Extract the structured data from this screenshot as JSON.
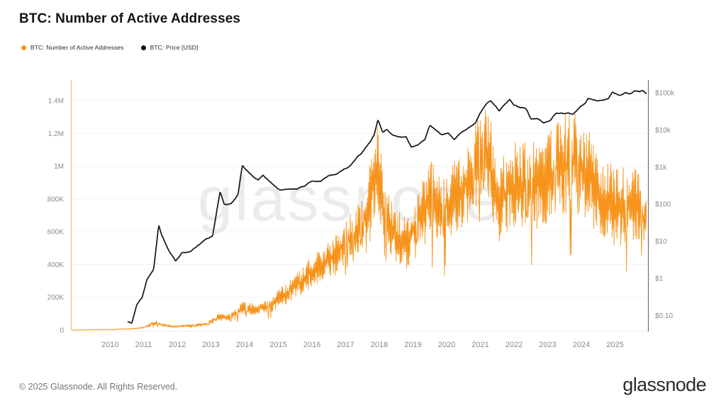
{
  "title": "BTC: Number of Active Addresses",
  "watermark": "glassnode",
  "legend": {
    "items": [
      {
        "label": "BTC: Number of Active Addresses",
        "color": "#f7931a"
      },
      {
        "label": "BTC: Price [USD]",
        "color": "#111111"
      }
    ]
  },
  "footer": {
    "copyright": "© 2025 Glassnode. All Rights Reserved.",
    "logo": "glassnode"
  },
  "colors": {
    "accent_orange": "#f7931a",
    "price_black": "#151515",
    "grid": "#f3f3f3",
    "axis_left_line": "rgba(247,147,26,0.55)",
    "axis_right_line": "#6f6f6f",
    "tick_text": "#8a8a8a",
    "baseline": "#ececec"
  },
  "chart_data": {
    "type": "line",
    "title": "BTC: Number of Active Addresses",
    "grid": "horizontal",
    "legend_position": "top-left",
    "x_axis": {
      "tick_years": [
        2010,
        2011,
        2012,
        2013,
        2014,
        2015,
        2016,
        2017,
        2018,
        2019,
        2020,
        2021,
        2022,
        2023,
        2024,
        2025
      ],
      "range_years": [
        2008.85,
        2025.95
      ]
    },
    "left_axis": {
      "scale": "linear",
      "tick_labels": [
        "0",
        "200K",
        "400K",
        "600K",
        "800K",
        "1M",
        "1.2M",
        "1.4M"
      ],
      "tick_values": [
        0,
        200000,
        400000,
        600000,
        800000,
        1000000,
        1200000,
        1400000
      ],
      "ylim": [
        0,
        1525000
      ]
    },
    "right_axis": {
      "scale": "log",
      "tick_labels": [
        "$0.10",
        "$1",
        "$10",
        "$100",
        "$1k",
        "$10k",
        "$100k"
      ],
      "tick_values": [
        0.1,
        1,
        10,
        100,
        1000,
        10000,
        100000
      ],
      "ylim": [
        0.043,
        220000
      ]
    },
    "series": [
      {
        "name": "BTC: Number of Active Addresses",
        "color": "#f7931a",
        "axis": "left",
        "style": "noisy-band",
        "anchors": [
          [
            2008.85,
            500,
            0.2
          ],
          [
            2010.0,
            3000,
            0.4
          ],
          [
            2010.6,
            8000,
            0.4
          ],
          [
            2011.0,
            15000,
            0.35
          ],
          [
            2011.35,
            45000,
            0.3
          ],
          [
            2011.6,
            30000,
            0.3
          ],
          [
            2011.9,
            22000,
            0.3
          ],
          [
            2012.4,
            26000,
            0.3
          ],
          [
            2012.9,
            38000,
            0.3
          ],
          [
            2013.25,
            80000,
            0.3
          ],
          [
            2013.6,
            80000,
            0.28
          ],
          [
            2013.95,
            135000,
            0.3
          ],
          [
            2014.3,
            125000,
            0.28
          ],
          [
            2014.8,
            150000,
            0.28
          ],
          [
            2015.0,
            190000,
            0.3
          ],
          [
            2015.5,
            260000,
            0.28
          ],
          [
            2016.0,
            360000,
            0.26
          ],
          [
            2016.7,
            460000,
            0.25
          ],
          [
            2017.1,
            560000,
            0.25
          ],
          [
            2017.5,
            640000,
            0.26
          ],
          [
            2017.96,
            1000000,
            0.26
          ],
          [
            2018.15,
            700000,
            0.3
          ],
          [
            2018.5,
            560000,
            0.3
          ],
          [
            2018.85,
            530000,
            0.3
          ],
          [
            2019.2,
            680000,
            0.3
          ],
          [
            2019.55,
            820000,
            0.3
          ],
          [
            2019.9,
            720000,
            0.3
          ],
          [
            2020.3,
            830000,
            0.28
          ],
          [
            2020.7,
            900000,
            0.28
          ],
          [
            2021.05,
            1100000,
            0.25
          ],
          [
            2021.25,
            1050000,
            0.28
          ],
          [
            2021.55,
            780000,
            0.32
          ],
          [
            2021.85,
            870000,
            0.3
          ],
          [
            2022.2,
            900000,
            0.3
          ],
          [
            2022.6,
            880000,
            0.32
          ],
          [
            2023.0,
            940000,
            0.3
          ],
          [
            2023.45,
            1010000,
            0.3
          ],
          [
            2023.9,
            1030000,
            0.3
          ],
          [
            2024.25,
            920000,
            0.32
          ],
          [
            2024.6,
            830000,
            0.33
          ],
          [
            2025.0,
            740000,
            0.32
          ],
          [
            2025.45,
            780000,
            0.32
          ],
          [
            2025.93,
            680000,
            0.3
          ]
        ]
      },
      {
        "name": "BTC: Price [USD]",
        "color": "#151515",
        "axis": "right",
        "style": "line",
        "anchors": [
          [
            2010.53,
            0.07
          ],
          [
            2010.65,
            0.062
          ],
          [
            2010.8,
            0.2
          ],
          [
            2010.95,
            0.3
          ],
          [
            2011.1,
            0.95
          ],
          [
            2011.3,
            1.8
          ],
          [
            2011.45,
            29
          ],
          [
            2011.55,
            14
          ],
          [
            2011.75,
            6
          ],
          [
            2011.95,
            3.1
          ],
          [
            2012.15,
            5.0
          ],
          [
            2012.35,
            4.9
          ],
          [
            2012.6,
            7.5
          ],
          [
            2012.85,
            11.5
          ],
          [
            2013.05,
            14
          ],
          [
            2013.27,
            220
          ],
          [
            2013.4,
            95
          ],
          [
            2013.6,
            105
          ],
          [
            2013.8,
            180
          ],
          [
            2013.93,
            1120
          ],
          [
            2014.05,
            830
          ],
          [
            2014.2,
            600
          ],
          [
            2014.4,
            450
          ],
          [
            2014.55,
            620
          ],
          [
            2014.8,
            370
          ],
          [
            2015.05,
            230
          ],
          [
            2015.25,
            245
          ],
          [
            2015.55,
            250
          ],
          [
            2015.8,
            310
          ],
          [
            2016.0,
            430
          ],
          [
            2016.25,
            420
          ],
          [
            2016.5,
            590
          ],
          [
            2016.75,
            650
          ],
          [
            2016.95,
            900
          ],
          [
            2017.15,
            1100
          ],
          [
            2017.35,
            1900
          ],
          [
            2017.5,
            2600
          ],
          [
            2017.7,
            4400
          ],
          [
            2017.85,
            7500
          ],
          [
            2017.96,
            19000
          ],
          [
            2018.1,
            9000
          ],
          [
            2018.22,
            10500
          ],
          [
            2018.4,
            7500
          ],
          [
            2018.6,
            6500
          ],
          [
            2018.8,
            6400
          ],
          [
            2018.95,
            3400
          ],
          [
            2019.15,
            3900
          ],
          [
            2019.35,
            5300
          ],
          [
            2019.5,
            12500
          ],
          [
            2019.65,
            10500
          ],
          [
            2019.85,
            7800
          ],
          [
            2020.05,
            8500
          ],
          [
            2020.22,
            5300
          ],
          [
            2020.45,
            9100
          ],
          [
            2020.65,
            11000
          ],
          [
            2020.85,
            15500
          ],
          [
            2021.0,
            29000
          ],
          [
            2021.15,
            47000
          ],
          [
            2021.3,
            62000
          ],
          [
            2021.45,
            44000
          ],
          [
            2021.56,
            32000
          ],
          [
            2021.7,
            45000
          ],
          [
            2021.87,
            66000
          ],
          [
            2022.0,
            46000
          ],
          [
            2022.15,
            40000
          ],
          [
            2022.35,
            38000
          ],
          [
            2022.5,
            20000
          ],
          [
            2022.7,
            21500
          ],
          [
            2022.88,
            15800
          ],
          [
            2023.05,
            17500
          ],
          [
            2023.25,
            28000
          ],
          [
            2023.45,
            27000
          ],
          [
            2023.6,
            30000
          ],
          [
            2023.75,
            26500
          ],
          [
            2023.95,
            43000
          ],
          [
            2024.1,
            52000
          ],
          [
            2024.2,
            71000
          ],
          [
            2024.35,
            63000
          ],
          [
            2024.5,
            57000
          ],
          [
            2024.65,
            60000
          ],
          [
            2024.8,
            66000
          ],
          [
            2024.92,
            99000
          ],
          [
            2025.05,
            93000
          ],
          [
            2025.15,
            84000
          ],
          [
            2025.3,
            104000
          ],
          [
            2025.45,
            96000
          ],
          [
            2025.6,
            116000
          ],
          [
            2025.72,
            109000
          ],
          [
            2025.82,
            114000
          ],
          [
            2025.93,
            90000
          ]
        ]
      }
    ]
  }
}
